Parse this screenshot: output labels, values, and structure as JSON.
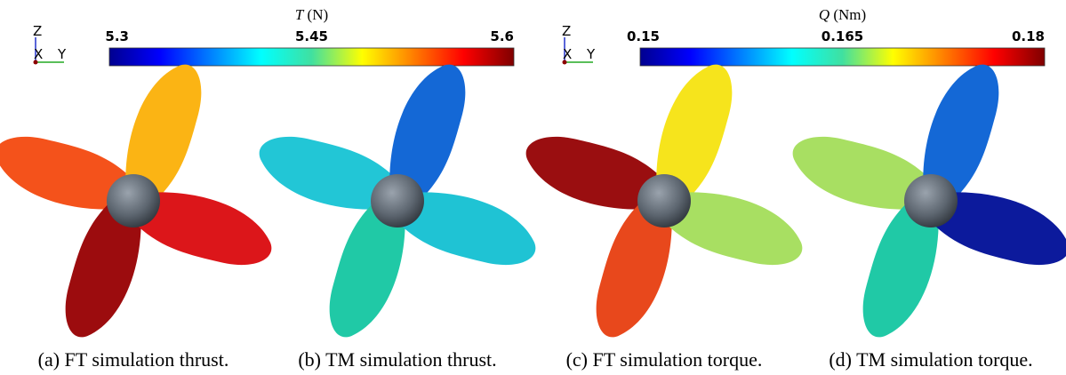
{
  "colorbars": [
    {
      "symbol": "T",
      "unit": "(N)",
      "lim": [
        5.3,
        5.6
      ],
      "ticks": [
        5.3,
        5.45,
        5.6
      ]
    },
    {
      "symbol": "Q",
      "unit": "(Nm)",
      "lim": [
        0.15,
        0.18
      ],
      "ticks": [
        0.15,
        0.165,
        0.18
      ]
    }
  ],
  "triads": [
    {
      "z": "Z",
      "x": "X",
      "y": "Y"
    },
    {
      "z": "Z",
      "x": "X",
      "y": "Y"
    }
  ],
  "panels": [
    {
      "caption": "(a) FT simulation thrust.",
      "blade_colors": [
        "#f4521b",
        "#fbb414",
        "#9c0c0e",
        "#dc161a"
      ]
    },
    {
      "caption": "(b) TM simulation thrust.",
      "blade_colors": [
        "#22c6d6",
        "#1468d6",
        "#20c9a6",
        "#1fc3d4"
      ]
    },
    {
      "caption": "(c) FT simulation torque.",
      "blade_colors": [
        "#9a0e10",
        "#f6e41c",
        "#e8481c",
        "#a8df62"
      ]
    },
    {
      "caption": "(d) TM simulation torque.",
      "blade_colors": [
        "#a8df62",
        "#1468d6",
        "#20c9a6",
        "#0c1a9c"
      ]
    }
  ]
}
